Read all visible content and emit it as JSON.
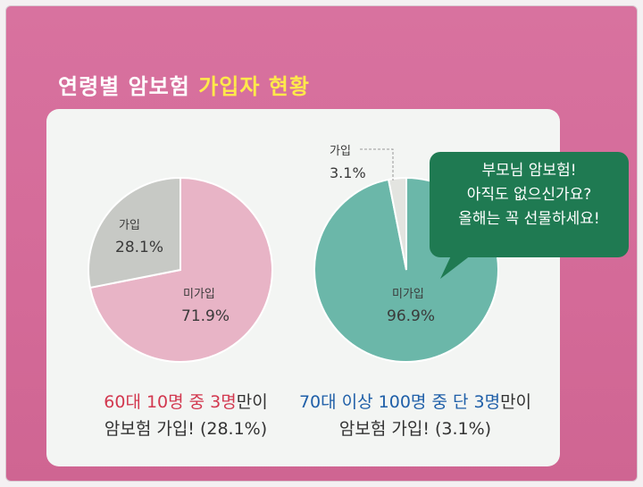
{
  "header": {
    "title_part1": "연령별 암보험 ",
    "title_part2": "가입자 현황"
  },
  "colors": {
    "background_pink": "#d46a98",
    "title_highlight": "#ffe94a",
    "pie1_joined": "#c7c9c5",
    "pie1_not_joined": "#e8b4c6",
    "pie2_joined": "#e3e4e0",
    "pie2_not_joined": "#6bb7a9",
    "bubble": "#1f7a52"
  },
  "chart_data": [
    {
      "type": "pie",
      "title": "",
      "slices": [
        {
          "label": "가입",
          "value": 28.1,
          "display": "28.1%"
        },
        {
          "label": "미가입",
          "value": 71.9,
          "display": "71.9%"
        }
      ],
      "caption": {
        "red_part": "60대 10명 중 3명",
        "rest": "만이",
        "line2": "암보험 가입! (28.1%)"
      }
    },
    {
      "type": "pie",
      "title": "",
      "slices": [
        {
          "label": "가입",
          "value": 3.1,
          "display": "3.1%"
        },
        {
          "label": "미가입",
          "value": 96.9,
          "display": "96.9%"
        }
      ],
      "caption": {
        "blue_part": "70대 이상 100명 중 단 3명",
        "rest": "만이",
        "line2": "암보험 가입! (3.1%)"
      }
    }
  ],
  "bubble": {
    "line1": "부모님 암보험!",
    "line2": "아직도 없으신가요?",
    "line3": "올해는 꼭 선물하세요!"
  }
}
